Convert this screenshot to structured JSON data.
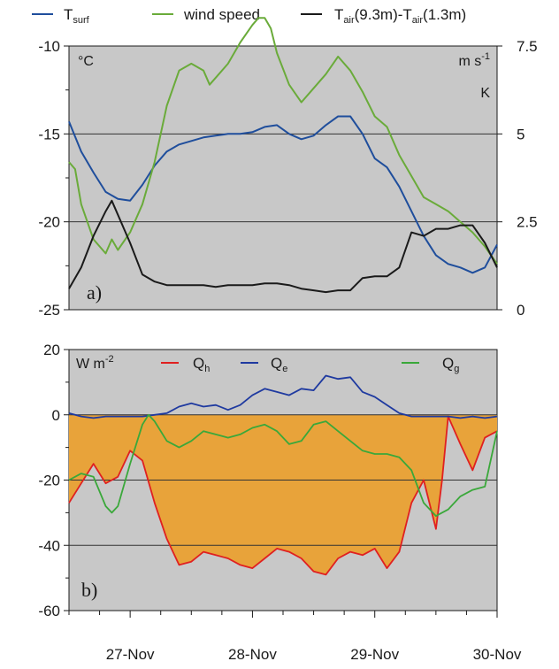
{
  "chart_data": [
    {
      "type": "line",
      "panel_label": "a)",
      "unit_left": "°C",
      "unit_right_top": "m s",
      "unit_right_top_exp": "-1",
      "unit_right_bottom": "K",
      "legend": {
        "placement": "top",
        "entries": [
          {
            "main": "T",
            "sub": "surf",
            "rest": "",
            "color": "#1f4e9c"
          },
          {
            "main": "wind speed",
            "sub": "",
            "rest": "",
            "color": "#6aab3a"
          },
          {
            "main": "T",
            "sub": "air",
            "rest": "(9.3m)-T",
            "sub2": "air",
            "rest2": "(1.3m)",
            "color": "#1a1a1a"
          }
        ]
      },
      "xlim": [
        26.5,
        30.0
      ],
      "ylim_left": [
        -25,
        -10
      ],
      "ylim_right": [
        0,
        7.5
      ],
      "yticks_left": [
        "-10",
        "-15",
        "-20",
        "-25"
      ],
      "yticks_left_values": [
        -10,
        -15,
        -20,
        -25
      ],
      "yticks_right": [
        "7.5",
        "5",
        "2.5",
        "0"
      ],
      "yticks_right_values": [
        7.5,
        5,
        2.5,
        0
      ],
      "grid": "horizontal",
      "background": "#c8c8c8",
      "series": [
        {
          "axis": "left",
          "color": "#1f4e9c",
          "x": [
            26.5,
            26.6,
            26.7,
            26.8,
            26.9,
            27.0,
            27.1,
            27.2,
            27.3,
            27.4,
            27.5,
            27.6,
            27.7,
            27.8,
            27.9,
            28.0,
            28.1,
            28.2,
            28.3,
            28.4,
            28.5,
            28.6,
            28.7,
            28.8,
            28.9,
            29.0,
            29.1,
            29.2,
            29.3,
            29.4,
            29.5,
            29.6,
            29.7,
            29.8,
            29.9,
            30.0
          ],
          "y": [
            -14.3,
            -16.0,
            -17.2,
            -18.3,
            -18.7,
            -18.8,
            -17.9,
            -16.8,
            -16.0,
            -15.6,
            -15.4,
            -15.2,
            -15.1,
            -15.0,
            -15.0,
            -14.9,
            -14.6,
            -14.5,
            -15.0,
            -15.3,
            -15.1,
            -14.5,
            -14.0,
            -14.0,
            -15.0,
            -16.4,
            -16.9,
            -18.0,
            -19.4,
            -20.8,
            -21.9,
            -22.4,
            -22.6,
            -22.9,
            -22.6,
            -21.3
          ]
        },
        {
          "axis": "right",
          "color": "#6aab3a",
          "x": [
            26.5,
            26.55,
            26.6,
            26.7,
            26.8,
            26.85,
            26.9,
            27.0,
            27.1,
            27.2,
            27.3,
            27.4,
            27.5,
            27.6,
            27.65,
            27.7,
            27.8,
            27.9,
            28.0,
            28.05,
            28.1,
            28.15,
            28.2,
            28.3,
            28.4,
            28.5,
            28.6,
            28.7,
            28.8,
            28.9,
            29.0,
            29.1,
            29.2,
            29.3,
            29.4,
            29.5,
            29.6,
            29.7,
            29.8,
            29.9,
            30.0
          ],
          "y": [
            4.2,
            4.0,
            3.0,
            2.0,
            1.6,
            2.0,
            1.7,
            2.2,
            3.0,
            4.2,
            5.8,
            6.8,
            7.0,
            6.8,
            6.4,
            6.6,
            7.0,
            7.6,
            8.1,
            8.3,
            8.3,
            8.0,
            7.3,
            6.4,
            5.9,
            6.3,
            6.7,
            7.2,
            6.8,
            6.2,
            5.5,
            5.2,
            4.4,
            3.8,
            3.2,
            3.0,
            2.8,
            2.5,
            2.2,
            1.8,
            1.3
          ]
        },
        {
          "axis": "right",
          "color": "#1a1a1a",
          "x": [
            26.5,
            26.6,
            26.7,
            26.8,
            26.85,
            26.9,
            26.95,
            27.0,
            27.1,
            27.2,
            27.3,
            27.4,
            27.5,
            27.6,
            27.7,
            27.8,
            27.9,
            28.0,
            28.1,
            28.2,
            28.3,
            28.4,
            28.5,
            28.6,
            28.7,
            28.8,
            28.9,
            29.0,
            29.1,
            29.2,
            29.3,
            29.4,
            29.5,
            29.6,
            29.7,
            29.8,
            29.9,
            30.0
          ],
          "y": [
            0.6,
            1.2,
            2.1,
            2.8,
            3.1,
            2.7,
            2.3,
            1.9,
            1.0,
            0.8,
            0.7,
            0.7,
            0.7,
            0.7,
            0.65,
            0.7,
            0.7,
            0.7,
            0.75,
            0.75,
            0.7,
            0.6,
            0.55,
            0.5,
            0.55,
            0.55,
            0.9,
            0.95,
            0.95,
            1.2,
            2.2,
            2.1,
            2.3,
            2.3,
            2.4,
            2.4,
            1.9,
            1.2
          ]
        }
      ]
    },
    {
      "type": "line",
      "panel_label": "b)",
      "unit": "W m",
      "unit_exp": "-2",
      "legend": {
        "placement": "top",
        "entries": [
          {
            "main": "Q",
            "sub": "h",
            "color": "#e02020"
          },
          {
            "main": "Q",
            "sub": "e",
            "color": "#1f3aa0"
          },
          {
            "main": "Q",
            "sub": "g",
            "color": "#3aa83a"
          }
        ]
      },
      "xlim": [
        26.5,
        30.0
      ],
      "ylim": [
        -60,
        20
      ],
      "yticks": [
        "20",
        "0",
        "-20",
        "-40",
        "-60"
      ],
      "yticks_values": [
        20,
        0,
        -20,
        -40,
        -60
      ],
      "xticks": [
        "27-Nov",
        "28-Nov",
        "29-Nov",
        "30-Nov"
      ],
      "xticks_values": [
        27,
        28,
        29,
        30
      ],
      "grid": "horizontal",
      "background": "#c8c8c8",
      "fill_color": "#e8a33a",
      "series": [
        {
          "name": "Q_h",
          "color": "#e02020",
          "fill_to_zero": true,
          "x": [
            26.5,
            26.6,
            26.7,
            26.8,
            26.9,
            27.0,
            27.1,
            27.2,
            27.3,
            27.4,
            27.5,
            27.6,
            27.7,
            27.8,
            27.9,
            28.0,
            28.1,
            28.2,
            28.3,
            28.4,
            28.5,
            28.6,
            28.7,
            28.8,
            28.9,
            29.0,
            29.1,
            29.2,
            29.3,
            29.4,
            29.5,
            29.55,
            29.6,
            29.7,
            29.8,
            29.9,
            30.0
          ],
          "y": [
            -27,
            -21,
            -15,
            -21,
            -19,
            -11,
            -14,
            -27,
            -38,
            -46,
            -45,
            -42,
            -43,
            -44,
            -46,
            -47,
            -44,
            -41,
            -42,
            -44,
            -48,
            -49,
            -44,
            -42,
            -43,
            -41,
            -47,
            -42,
            -27,
            -20,
            -35,
            -20,
            -0.5,
            -9,
            -17,
            -7,
            -5
          ]
        },
        {
          "name": "Q_e",
          "color": "#1f3aa0",
          "fill_to_zero": false,
          "x": [
            26.5,
            26.6,
            26.7,
            26.8,
            26.9,
            27.0,
            27.1,
            27.2,
            27.3,
            27.4,
            27.5,
            27.6,
            27.7,
            27.8,
            27.9,
            28.0,
            28.1,
            28.2,
            28.3,
            28.4,
            28.5,
            28.6,
            28.7,
            28.8,
            28.9,
            29.0,
            29.1,
            29.2,
            29.3,
            29.4,
            29.5,
            29.6,
            29.7,
            29.8,
            29.9,
            30.0
          ],
          "y": [
            0.5,
            -0.5,
            -1,
            -0.5,
            -0.5,
            -0.5,
            -0.5,
            0,
            0.5,
            2.5,
            3.5,
            2.5,
            3,
            1.5,
            3,
            6,
            8,
            7,
            6,
            8,
            7.5,
            12,
            11,
            11.5,
            7,
            5.5,
            3,
            0.5,
            -0.5,
            -0.5,
            -0.5,
            -0.5,
            -1,
            -0.5,
            -1,
            -0.5
          ]
        },
        {
          "name": "Q_g",
          "color": "#3aa83a",
          "fill_to_zero": false,
          "x": [
            26.5,
            26.6,
            26.7,
            26.8,
            26.85,
            26.9,
            27.0,
            27.1,
            27.15,
            27.2,
            27.3,
            27.4,
            27.5,
            27.6,
            27.7,
            27.8,
            27.9,
            28.0,
            28.1,
            28.2,
            28.3,
            28.4,
            28.5,
            28.6,
            28.7,
            28.8,
            28.9,
            29.0,
            29.1,
            29.2,
            29.3,
            29.4,
            29.5,
            29.6,
            29.7,
            29.8,
            29.9,
            30.0
          ],
          "y": [
            -20,
            -18,
            -19,
            -28,
            -30,
            -28,
            -15,
            -3,
            0,
            -2,
            -8,
            -10,
            -8,
            -5,
            -6,
            -7,
            -6,
            -4,
            -3,
            -5,
            -9,
            -8,
            -3,
            -2,
            -5,
            -8,
            -11,
            -12,
            -12,
            -13,
            -17,
            -27,
            -31,
            -29,
            -25,
            -23,
            -22,
            -5
          ]
        }
      ]
    }
  ]
}
